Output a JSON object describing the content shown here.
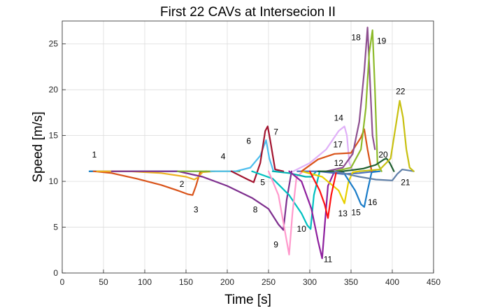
{
  "chart_data": {
    "type": "line",
    "title": "First 22 CAVs at Intersecion II",
    "xlabel": "Time [s]",
    "ylabel": "Speed [m/s]",
    "xlim": [
      0,
      450
    ],
    "ylim": [
      0,
      27.5
    ],
    "xticks": [
      0,
      50,
      100,
      150,
      200,
      250,
      300,
      350,
      400,
      450
    ],
    "yticks": [
      0,
      5,
      10,
      15,
      20,
      25
    ],
    "grid": true,
    "legend": "none",
    "series": [
      {
        "name": "1",
        "color": "#0072BD",
        "x": [
          33,
          60,
          90,
          120,
          140
        ],
        "y": [
          11.1,
          11.1,
          11.1,
          11.1,
          11.1
        ]
      },
      {
        "name": "2",
        "color": "#D95319",
        "x": [
          38,
          60,
          90,
          120,
          140,
          152,
          158,
          162,
          167,
          175
        ],
        "y": [
          11.1,
          10.9,
          10.3,
          9.6,
          9.0,
          8.6,
          8.5,
          9.5,
          11.0,
          11.1
        ]
      },
      {
        "name": "3",
        "color": "#EDB120",
        "x": [
          42,
          80,
          120,
          150,
          160,
          164,
          170,
          185
        ],
        "y": [
          11.1,
          11.1,
          10.9,
          10.5,
          10.2,
          10.4,
          11.0,
          11.1
        ]
      },
      {
        "name": "4",
        "color": "#7E2F8E",
        "x": [
          60,
          100,
          140,
          170,
          200,
          230,
          250,
          262,
          268,
          272,
          278
        ],
        "y": [
          11.1,
          11.1,
          11.1,
          10.5,
          9.5,
          8.2,
          7.0,
          5.3,
          4.7,
          8.0,
          11.1
        ]
      },
      {
        "name": "5",
        "color": "#77AC30",
        "x": [
          140,
          170,
          200,
          215
        ],
        "y": [
          11.1,
          11.1,
          11.1,
          11.1
        ]
      },
      {
        "name": "6",
        "color": "#4DBEEE",
        "x": [
          180,
          210,
          228,
          240,
          247,
          251,
          256,
          262
        ],
        "y": [
          11.1,
          11.1,
          11.5,
          12.8,
          14.5,
          12.5,
          11.1,
          11.1
        ]
      },
      {
        "name": "7",
        "color": "#A2142F",
        "x": [
          205,
          225,
          232,
          240,
          246,
          249,
          252,
          258,
          268
        ],
        "y": [
          11.1,
          10.2,
          9.9,
          12.0,
          15.5,
          16.0,
          14.5,
          11.3,
          11.1
        ]
      },
      {
        "name": "8",
        "color": "#00C0C0",
        "x": [
          230,
          255,
          275,
          290,
          297,
          301,
          305,
          312
        ],
        "y": [
          11.1,
          10.3,
          8.5,
          6.5,
          5.2,
          4.8,
          8.5,
          11.1
        ]
      },
      {
        "name": "9",
        "color": "#FF99CC",
        "x": [
          250,
          262,
          270,
          275,
          279,
          284,
          292
        ],
        "y": [
          11.1,
          8.5,
          4.5,
          2.0,
          6.5,
          10.5,
          11.1
        ]
      },
      {
        "name": "10",
        "color": "#00B0B0",
        "x": [
          255,
          275,
          295,
          302,
          308
        ],
        "y": [
          11.1,
          10.9,
          10.5,
          10.5,
          11.1
        ]
      },
      {
        "name": "11",
        "color": "#8E1F9E",
        "x": [
          275,
          290,
          302,
          310,
          315,
          318,
          322,
          330
        ],
        "y": [
          11.1,
          10.0,
          7.0,
          3.5,
          1.6,
          5.0,
          9.5,
          11.1
        ]
      },
      {
        "name": "12",
        "color": "#4A6FBF",
        "x": [
          285,
          310,
          340,
          360,
          380
        ],
        "y": [
          11.1,
          11.1,
          10.8,
          10.9,
          11.1
        ]
      },
      {
        "name": "13",
        "color": "#E8D000",
        "x": [
          290,
          315,
          335,
          342,
          347,
          352,
          360
        ],
        "y": [
          11.1,
          10.5,
          9.0,
          7.6,
          10.0,
          11.0,
          11.1
        ]
      },
      {
        "name": "14",
        "color": "#E0B0F8",
        "x": [
          280,
          300,
          320,
          335,
          342,
          345,
          348,
          352
        ],
        "y": [
          11.1,
          12.0,
          13.5,
          15.5,
          16.0,
          15.0,
          12.0,
          11.2
        ]
      },
      {
        "name": "15",
        "color": "#FF1010",
        "x": [
          300,
          312,
          318,
          322,
          326,
          332,
          340
        ],
        "y": [
          11.1,
          9.0,
          7.5,
          6.0,
          8.5,
          11.0,
          11.1
        ]
      },
      {
        "name": "16",
        "color": "#1A7CC8",
        "x": [
          340,
          355,
          362,
          366,
          370,
          375,
          385
        ],
        "y": [
          11.1,
          9.0,
          7.5,
          7.2,
          9.0,
          11.0,
          11.1
        ]
      },
      {
        "name": "17",
        "color": "#D95319",
        "x": [
          290,
          310,
          330,
          350,
          362,
          366,
          370,
          375
        ],
        "y": [
          11.1,
          12.4,
          13.0,
          13.1,
          14.8,
          15.7,
          13.5,
          11.1
        ]
      },
      {
        "name": "18",
        "color": "#8E5090",
        "x": [
          320,
          340,
          352,
          360,
          366,
          370,
          373,
          376,
          379
        ],
        "y": [
          11.1,
          11.5,
          13.0,
          16.5,
          22.0,
          26.8,
          21.0,
          15.0,
          13.5
        ]
      },
      {
        "name": "19",
        "color": "#8DBA2A",
        "x": [
          330,
          350,
          362,
          368,
          372,
          376,
          379,
          382,
          387
        ],
        "y": [
          11.1,
          11.5,
          13.5,
          18.0,
          24.0,
          26.5,
          20.0,
          12.0,
          11.1
        ]
      },
      {
        "name": "20",
        "color": "#1E5E2E",
        "x": [
          310,
          340,
          365,
          380,
          390,
          393,
          397,
          402
        ],
        "y": [
          11.1,
          11.1,
          11.4,
          11.8,
          12.4,
          12.5,
          12.0,
          11.1
        ]
      },
      {
        "name": "21",
        "color": "#6080A8",
        "x": [
          330,
          360,
          380,
          400,
          406,
          412,
          426
        ],
        "y": [
          11.1,
          10.5,
          10.2,
          10.1,
          10.8,
          11.3,
          11.1
        ]
      },
      {
        "name": "22",
        "color": "#C8C010",
        "x": [
          360,
          385,
          398,
          405,
          409,
          413,
          417,
          421,
          426
        ],
        "y": [
          11.1,
          11.3,
          12.5,
          16.5,
          18.8,
          17.0,
          13.5,
          11.5,
          11.1
        ]
      }
    ],
    "annotations": [
      {
        "text": "1",
        "x": 39,
        "y": 12.6
      },
      {
        "text": "2",
        "x": 145,
        "y": 9.4
      },
      {
        "text": "3",
        "x": 162,
        "y": 6.6
      },
      {
        "text": "4",
        "x": 195,
        "y": 12.4
      },
      {
        "text": "5",
        "x": 243,
        "y": 9.6
      },
      {
        "text": "6",
        "x": 226,
        "y": 14.1
      },
      {
        "text": "7",
        "x": 259,
        "y": 15.1
      },
      {
        "text": "8",
        "x": 234,
        "y": 6.6
      },
      {
        "text": "9",
        "x": 259,
        "y": 2.8
      },
      {
        "text": "10",
        "x": 290,
        "y": 4.5
      },
      {
        "text": "11",
        "x": 322,
        "y": 1.2
      },
      {
        "text": "12",
        "x": 335,
        "y": 11.7
      },
      {
        "text": "13",
        "x": 340,
        "y": 6.2
      },
      {
        "text": "14",
        "x": 335,
        "y": 16.6
      },
      {
        "text": "15",
        "x": 356,
        "y": 6.3
      },
      {
        "text": "16",
        "x": 376,
        "y": 7.4
      },
      {
        "text": "17",
        "x": 334,
        "y": 13.7
      },
      {
        "text": "18",
        "x": 356,
        "y": 25.4
      },
      {
        "text": "19",
        "x": 387,
        "y": 25.0
      },
      {
        "text": "20",
        "x": 389,
        "y": 12.6
      },
      {
        "text": "21",
        "x": 416,
        "y": 9.6
      },
      {
        "text": "22",
        "x": 410,
        "y": 19.5
      }
    ]
  }
}
